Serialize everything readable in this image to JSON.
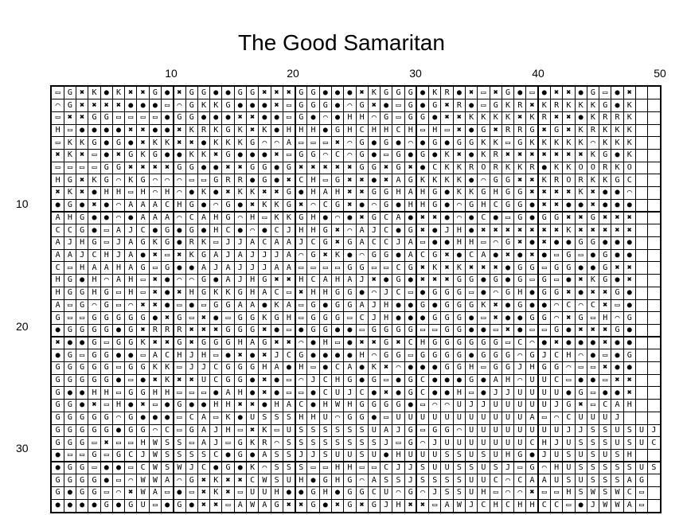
{
  "title": "The Good Samaritan",
  "column_labels": [
    "10",
    "20",
    "30",
    "40",
    "50"
  ],
  "row_labels": [
    "10",
    "20",
    "30"
  ],
  "symbol_glyphs": {
    "dot": "●",
    "cross": "✖",
    "box": "▭",
    "arc": "⌒"
  },
  "pattern_rows": [
    "bGxKdKxxGdxGGddGGxxxGGdddxKGGGdKRdxbxGdbdxxdGbdx",
    "aGxxxxdddbaGKKGdddxbGGGdaGxdbGdGxRdbGKRxKRKKKGdK",
    "bxxGGbbbbdGGdddxxddbGdadHHaGbGGdxxKKKKxKRxxdKRRK",
    "HbddddxxddxKRKGKxKdHHHdGHCHHCHbHbxdGxRRGxGxKRKKK",
    "bKKGdGdxKKxxdKKKGaaAbbbxaGdGdadGdGGKKbGKKKKKaKKK",
    "xKxbdxGKGddKKxGdddxbGGaCaGdbGdGdKxdKRxxxxxxxKGdK",
    "bbbbGGxxxxGGddxxGGdGxxxxxGGxGxdCKKRORKKRdKKOORKO",
    "HGxKGaKGaaabbGRRdGdxCHbGxxdxAGKKKKdaGGxxKRORKKGC",
    "xKxdHHbHaHadKdxKKxxGdHAHxxGGHAHGdKKGHGGxxxxKxdda",
    "dGdxdaAAACHGdaGdxKKGxaCGxdaGdHHGdaGHCGGdxxddxddd",
    "AHGddadAAAaCAHGaHbKKGHdadxGCAdxxdadCdbGdGGxxGxxx",
    "CCGdbAJCdGdGdHCdadCJHHGxaAJCdGxdJHdxxxxxxxKxxxxx",
    "AJHGbJAGKGdRKbJJACAAJCGxGACCJAbddHHbaGxdxddGGddd",
    "AAJCHJAdxbxKGAJAJJJAaGxKdaGGdACGxdCAdxdxdbGbdGdd",
    "CbHAAHAGbGddAJAJJJAAbbbbGGbbCGxKxKxxxdGGbGGddGxx",
    "HGdHaAHbxdaaGdAJHGxxHCAHAJxdGdxxxGGdGdGbGbdxKGdx",
    "HGGHGbHbxdxHGKKGHACbxHHGGdaJCbdGGGbdaGHdGGxdxxGd",
    "AbGaGbaxxdbdbGGAAdKAbGdGGAJHddGdGGGKxdGddaCaCxbd",
    "GbbGGGGGdxGbxdbGGKGHbGGGbCJHdddGGGdbxddGGaxGbHaG",
    "dGGGGdGxRRRxxxGGGxdbdGGddbGGGGbbGGddbxdbbGdxxxGd",
    "xddGbGGKxxGxGGGHAGxxadHbdxxGxCHGGGGGGbCadxdddxdd",
    "dGbGGddbACHJHbdxdxJCGddddHaGGbGGGGdGGGaGJCHadbdG",
    "GGGGGbGGKKbJJCGGGHAdHbdCAdKxadddGGHbGGJHGGabbxdd",
    "GGGGGdbdxKxxUCGGdxdbaJCHGdGbdGCdddGdAHaUUCbddbxx",
    "GddHHbGGHHbbbdAHdxdbbdCUJCdxdGCddHbdJJUUUUdGbddx",
    "GGdxbHdxbdGddHHxxdHACdHWHGGGGdbaaUJJUUUUUJGxbCAH",
    "GGGGGaGdddbCAbKdUSSSHHUaGGdbUUUUUUUUUUUAbaCUUUJ",
    "GGGGGdGGaCbGAJHbxKbUSSSSSSUAJGbGGaUUUUUUUUJJSSUSUJ",
    "GGGbxbbHWSSbAJbGKRaSSSSSSSSJbGaJUUUUUUUCHJUSSSUSUC",
    "dbbGbGCJWSSSSCdGdASSJJSUUSUdHUUUSSUSUHGdJUSUSUSH",
    "dGGbddbCWSWJCdGdKaSSSbbHHbbCJJSUUSSUSJbGaHUSSSSSUS",
    "GGGGdbaWWAaGxKxxCWSUHdGHGaASSJSSSSUUCaCAAUSUSSSAG",
    "GdGGbaxWAbdbxKxbUUHddGHdGGCUaGaJSSUHbaaxbbHSWSWCb",
    "ddddGdGUbdGdxxbAWAGxxGdxGxGJHxxbAWJCHCHHCCbdJWWAb",
    "GGdGGddCGbxxKHUWSJACGxdaGdHbaCHHaaASWSWWWCGJUHGdG"
  ]
}
